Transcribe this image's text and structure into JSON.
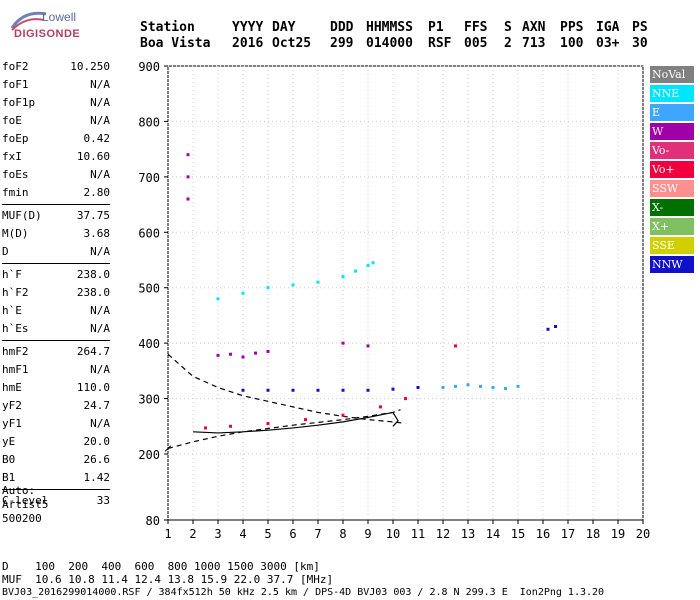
{
  "logo": {
    "line1": "Lowell",
    "line2": "DIGISONDE"
  },
  "header": {
    "row1": [
      "Station",
      "YYYY",
      "DAY",
      "DDD",
      "HHMMSS",
      "P1",
      "FFS",
      "S",
      "AXN",
      "PPS",
      "IGA",
      "PS"
    ],
    "row2": [
      "Boa Vista",
      "2016",
      "Oct25",
      "299",
      "014000",
      "RSF",
      "005",
      "2",
      "713",
      "100",
      "03+",
      "30"
    ]
  },
  "params": [
    {
      "group": [
        {
          "label": "foF2",
          "value": "10.250"
        },
        {
          "label": "foF1",
          "value": "N/A"
        },
        {
          "label": "foF1p",
          "value": "N/A"
        },
        {
          "label": "foE",
          "value": "N/A"
        },
        {
          "label": "foEp",
          "value": "0.42"
        },
        {
          "label": "fxI",
          "value": "10.60"
        },
        {
          "label": "foEs",
          "value": "N/A"
        },
        {
          "label": "fmin",
          "value": "2.80"
        }
      ]
    },
    {
      "group": [
        {
          "label": "MUF(D)",
          "value": "37.75"
        },
        {
          "label": "M(D)",
          "value": "3.68"
        },
        {
          "label": "D",
          "value": "N/A"
        }
      ]
    },
    {
      "group": [
        {
          "label": "h`F",
          "value": "238.0"
        },
        {
          "label": "h`F2",
          "value": "238.0"
        },
        {
          "label": "h`E",
          "value": "N/A"
        },
        {
          "label": "h`Es",
          "value": "N/A"
        }
      ]
    },
    {
      "group": [
        {
          "label": "hmF2",
          "value": "264.7"
        },
        {
          "label": "hmF1",
          "value": "N/A"
        },
        {
          "label": "hmE",
          "value": "110.0"
        },
        {
          "label": "yF2",
          "value": "24.7"
        },
        {
          "label": "yF1",
          "value": "N/A"
        },
        {
          "label": "yE",
          "value": "20.0"
        },
        {
          "label": "B0",
          "value": "26.6"
        },
        {
          "label": "B1",
          "value": "1.42"
        }
      ]
    },
    {
      "group": [
        {
          "label": "C-level",
          "value": "33"
        }
      ]
    }
  ],
  "auto": [
    "Auto:",
    "Artist5",
    "500200"
  ],
  "legend": [
    {
      "label": "NoVal",
      "color": "#808080"
    },
    {
      "label": "NNE",
      "color": "#00e5ff"
    },
    {
      "label": "E",
      "color": "#3ea6ff"
    },
    {
      "label": "W",
      "color": "#a000a8"
    },
    {
      "label": "Vo-",
      "color": "#e0307a"
    },
    {
      "label": "Vo+",
      "color": "#f0003c"
    },
    {
      "label": "SSW",
      "color": "#ff9090"
    },
    {
      "label": "X-",
      "color": "#007000"
    },
    {
      "label": "X+",
      "color": "#80c060"
    },
    {
      "label": "SSE",
      "color": "#d0d000"
    },
    {
      "label": "NNW",
      "color": "#1010c8"
    }
  ],
  "footer": {
    "line1": "D    100  200  400  600  800 1000 1500 3000 [km]",
    "line2": "MUF  10.6 10.8 11.4 12.4 13.8 15.9 22.0 37.7 [MHz]",
    "line3": "BVJ03_2016299014000.RSF / 384fx512h 50 kHz 2.5 km / DPS-4D BVJ03 003 / 2.8 N 299.3 E  Ion2Png 1.3.20"
  },
  "chart_data": {
    "type": "scatter",
    "title": "",
    "xlabel": "",
    "ylabel": "",
    "xlim": [
      1,
      20
    ],
    "ylim": [
      80,
      900
    ],
    "x_ticks": [
      1,
      2,
      3,
      4,
      5,
      6,
      7,
      8,
      9,
      10,
      11,
      12,
      13,
      14,
      15,
      16,
      17,
      18,
      19,
      20
    ],
    "y_ticks": [
      80,
      200,
      300,
      400,
      500,
      600,
      700,
      800,
      900
    ],
    "grid": "dotted",
    "series": [
      {
        "name": "NNE",
        "x": [
          3.0,
          4.0,
          5.0,
          6.0,
          7.0,
          8.0,
          8.5,
          9.0,
          9.2
        ],
        "y": [
          480,
          490,
          500,
          505,
          510,
          520,
          530,
          540,
          545
        ]
      },
      {
        "name": "E",
        "x": [
          12.0,
          12.5,
          13.0,
          13.5,
          14.0,
          14.5,
          15.0
        ],
        "y": [
          320,
          322,
          325,
          322,
          320,
          318,
          322
        ]
      },
      {
        "name": "W",
        "x": [
          1.8,
          1.8,
          1.8,
          3.0,
          3.5,
          4.0,
          4.5,
          5.0,
          8.0,
          9.0
        ],
        "y": [
          660,
          700,
          740,
          378,
          380,
          375,
          382,
          385,
          400,
          395
        ]
      },
      {
        "name": "NNW",
        "x": [
          4.0,
          5.0,
          6.0,
          7.0,
          8.0,
          9.0,
          10.0,
          11.0,
          16.2,
          16.5
        ],
        "y": [
          315,
          315,
          315,
          315,
          315,
          315,
          317,
          320,
          425,
          430
        ]
      },
      {
        "name": "Vo+",
        "x": [
          2.5,
          3.5,
          5.0,
          6.5,
          8.0,
          9.5,
          10.5,
          12.5
        ],
        "y": [
          247,
          250,
          255,
          262,
          270,
          285,
          300,
          395
        ]
      }
    ],
    "trace_lines": [
      {
        "name": "dashed-profile",
        "x": [
          1.0,
          1.5,
          2.0,
          3.0,
          4.0,
          5.0,
          6.0,
          7.0,
          8.0,
          9.0,
          10.0,
          10.5
        ],
        "y": [
          380,
          360,
          340,
          320,
          305,
          295,
          285,
          275,
          268,
          262,
          258,
          255
        ]
      },
      {
        "name": "lower-dashed",
        "x": [
          1.0,
          2.0,
          3.0,
          4.0,
          5.0,
          6.0,
          7.0,
          8.0,
          9.0,
          10.0,
          10.3
        ],
        "y": [
          210,
          222,
          232,
          240,
          246,
          252,
          257,
          262,
          268,
          275,
          280
        ]
      },
      {
        "name": "solid-profile",
        "x": [
          2.0,
          3.0,
          4.0,
          5.0,
          6.0,
          7.0,
          8.0,
          9.0,
          10.0,
          10.2,
          10.0
        ],
        "y": [
          240,
          238,
          240,
          243,
          247,
          252,
          258,
          266,
          275,
          260,
          250
        ]
      }
    ]
  }
}
